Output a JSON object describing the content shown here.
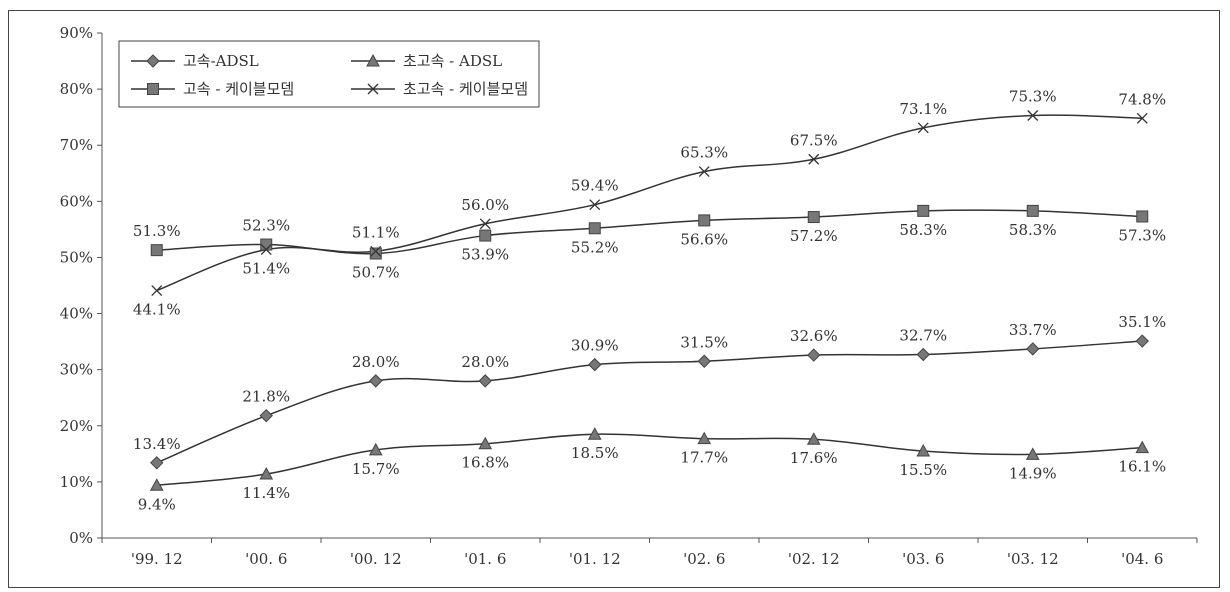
{
  "chart_data": {
    "type": "line",
    "categories": [
      "'99. 12",
      "'00. 6",
      "'00. 12",
      "'01. 6",
      "'01. 12",
      "'02. 6",
      "'02. 12",
      "'03. 6",
      "'03. 12",
      "'04. 6"
    ],
    "ylim": [
      0,
      90
    ],
    "yticks": [
      0,
      10,
      20,
      30,
      40,
      50,
      60,
      70,
      80,
      90
    ],
    "ytick_labels": [
      "0%",
      "10%",
      "20%",
      "30%",
      "40%",
      "50%",
      "60%",
      "70%",
      "80%",
      "90%"
    ],
    "grid": false,
    "legend_position": "top-left",
    "series": [
      {
        "name": "고속-ADSL",
        "marker": "diamond",
        "color": "#555555",
        "values": [
          13.4,
          21.8,
          28.0,
          28.0,
          30.9,
          31.5,
          32.6,
          32.7,
          33.7,
          35.1
        ],
        "labels": [
          "13.4%",
          "21.8%",
          "28.0%",
          "28.0%",
          "30.9%",
          "31.5%",
          "32.6%",
          "32.7%",
          "33.7%",
          "35.1%"
        ],
        "label_pos": [
          "above",
          "above",
          "above",
          "above",
          "above",
          "above",
          "above",
          "above",
          "above",
          "above"
        ]
      },
      {
        "name": "초고속 - ADSL",
        "marker": "triangle",
        "color": "#555555",
        "values": [
          9.4,
          11.4,
          15.7,
          16.8,
          18.5,
          17.7,
          17.6,
          15.5,
          14.9,
          16.1
        ],
        "labels": [
          "9.4%",
          "11.4%",
          "15.7%",
          "16.8%",
          "18.5%",
          "17.7%",
          "17.6%",
          "15.5%",
          "14.9%",
          "16.1%"
        ],
        "label_pos": [
          "below",
          "below",
          "below",
          "below",
          "below",
          "below",
          "below",
          "below",
          "below",
          "below"
        ]
      },
      {
        "name": "고속 - 케이블모뎀",
        "marker": "square",
        "color": "#555555",
        "values": [
          51.3,
          52.3,
          50.7,
          53.9,
          55.2,
          56.6,
          57.2,
          58.3,
          58.3,
          57.3
        ],
        "labels": [
          "51.3%",
          "52.3%",
          "50.7%",
          "53.9%",
          "55.2%",
          "56.6%",
          "57.2%",
          "58.3%",
          "58.3%",
          "57.3%"
        ],
        "label_pos": [
          "above",
          "above",
          "below",
          "below",
          "below",
          "below",
          "below",
          "below",
          "below",
          "below"
        ]
      },
      {
        "name": "초고속 - 케이블모뎀",
        "marker": "x",
        "color": "#555555",
        "values": [
          44.1,
          51.4,
          51.1,
          56.0,
          59.4,
          65.3,
          67.5,
          73.1,
          75.3,
          74.8
        ],
        "labels": [
          "44.1%",
          "51.4%",
          "51.1%",
          "56.0%",
          "59.4%",
          "65.3%",
          "67.5%",
          "73.1%",
          "75.3%",
          "74.8%"
        ],
        "label_pos": [
          "below",
          "below",
          "above",
          "above",
          "above",
          "above",
          "above",
          "above",
          "above",
          "above"
        ]
      }
    ]
  }
}
